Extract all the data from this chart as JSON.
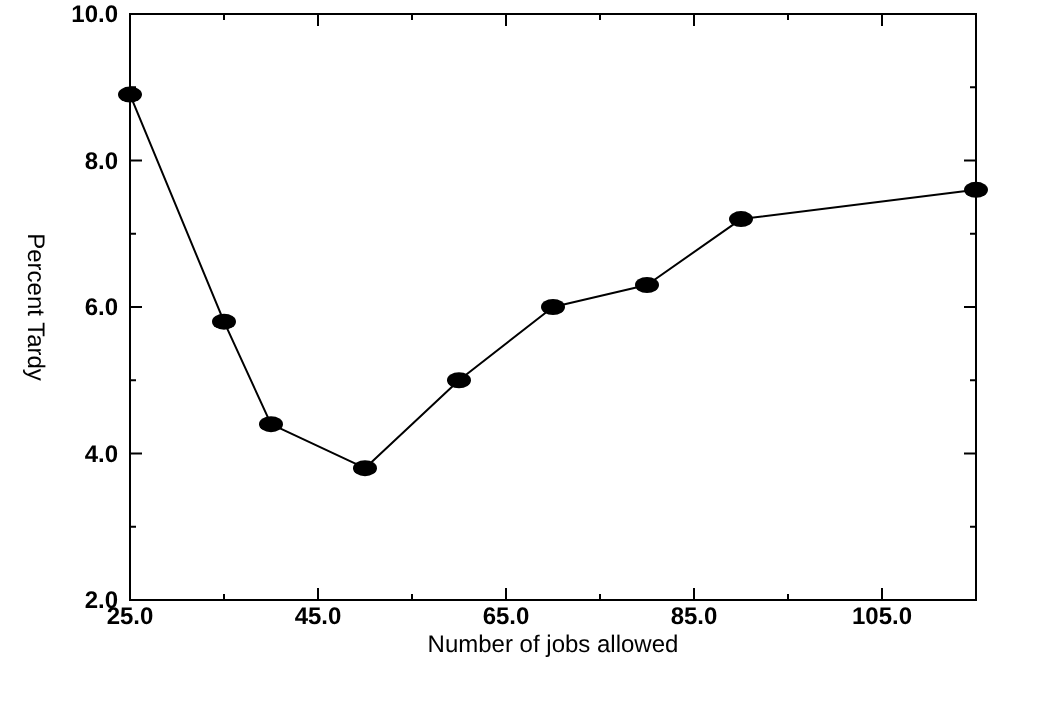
{
  "chart_data": {
    "type": "line",
    "xlabel": "Number of jobs allowed",
    "ylabel": "Percent Tardy",
    "x": [
      25,
      35,
      40,
      50,
      60,
      70,
      80,
      90,
      115
    ],
    "series": [
      {
        "color": "#000000",
        "values": [
          8.9,
          5.8,
          4.4,
          3.8,
          5.0,
          6.0,
          6.3,
          7.2,
          7.6
        ]
      }
    ],
    "xlim": [
      25,
      115
    ],
    "xticks": [
      {
        "value": 25,
        "label": "25.0"
      },
      {
        "value": 35,
        "label": null
      },
      {
        "value": 45,
        "label": "45.0"
      },
      {
        "value": 55,
        "label": null
      },
      {
        "value": 65,
        "label": "65.0"
      },
      {
        "value": 75,
        "label": null
      },
      {
        "value": 85,
        "label": "85.0"
      },
      {
        "value": 95,
        "label": null
      },
      {
        "value": 105,
        "label": "105.0"
      }
    ],
    "ylim": [
      2,
      10
    ],
    "yticks": [
      {
        "value": 2,
        "label": "2.0"
      },
      {
        "value": 3,
        "label": null
      },
      {
        "value": 4,
        "label": "4.0"
      },
      {
        "value": 5,
        "label": null
      },
      {
        "value": 6,
        "label": "6.0"
      },
      {
        "value": 7,
        "label": null
      },
      {
        "value": 8,
        "label": "8.0"
      },
      {
        "value": 9,
        "label": null
      },
      {
        "value": 10,
        "label": "10.0"
      }
    ],
    "grid": false,
    "marker": "circle",
    "line_style": "solid"
  }
}
